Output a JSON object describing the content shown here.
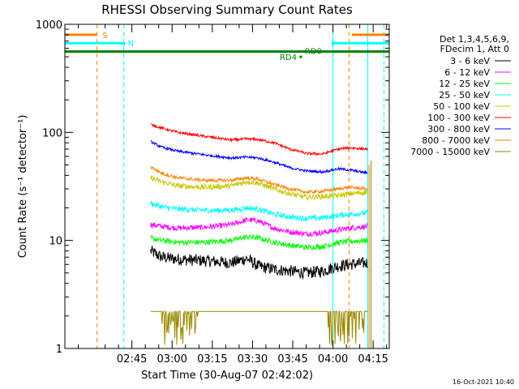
{
  "chart_data": {
    "type": "line",
    "title": "RHESSI Observing Summary Count Rates",
    "xlabel": "Start Time (30-Aug-07 02:42:02)",
    "ylabel": "Count Rate (s⁻¹ detector⁻¹)",
    "y_scale": "log",
    "ylim": [
      1,
      1000
    ],
    "y_ticks": [
      1,
      10,
      100,
      1000
    ],
    "y_tick_labels": [
      "1",
      "10",
      "100",
      "1000"
    ],
    "xlim_minutes": [
      -22,
      99
    ],
    "x_ticks_minutes": [
      3,
      18,
      33,
      48,
      63,
      78,
      93
    ],
    "x_tick_labels": [
      "02:45",
      "03:00",
      "03:15",
      "03:30",
      "03:45",
      "04:00",
      "04:15"
    ],
    "footer_date": "16-Oct-2021 10:40",
    "legend_header": [
      "Det 1,3,4,5,6,9,",
      "FDecim 1, Att 0"
    ],
    "series": [
      {
        "name": "3 - 6 keV",
        "color": "#000000",
        "x": [
          10,
          14,
          20,
          30,
          40,
          46,
          50,
          56,
          62,
          68,
          74,
          80,
          84,
          91
        ],
        "y": [
          8.0,
          7.0,
          6.7,
          6.5,
          6.2,
          6.8,
          5.8,
          5.4,
          5.2,
          5.0,
          5.2,
          5.8,
          6.0,
          6.2
        ]
      },
      {
        "name": "6 - 12 keV",
        "color": "#ff00ff",
        "x": [
          10,
          14,
          20,
          30,
          40,
          46,
          50,
          56,
          62,
          68,
          74,
          80,
          84,
          91
        ],
        "y": [
          14.0,
          13.5,
          13.0,
          13.2,
          14.0,
          15.5,
          15.2,
          13.0,
          12.0,
          11.5,
          11.8,
          12.5,
          13.0,
          13.5
        ]
      },
      {
        "name": "12 - 25 keV",
        "color": "#00ff00",
        "x": [
          10,
          14,
          20,
          30,
          40,
          46,
          50,
          56,
          62,
          68,
          74,
          80,
          84,
          91
        ],
        "y": [
          10.5,
          10.0,
          9.6,
          9.6,
          10.0,
          10.8,
          10.6,
          9.6,
          9.0,
          8.6,
          8.8,
          9.5,
          9.8,
          10.0
        ]
      },
      {
        "name": "25 - 50 keV",
        "color": "#00ffff",
        "x": [
          10,
          14,
          20,
          30,
          40,
          46,
          50,
          56,
          62,
          68,
          74,
          80,
          84,
          91
        ],
        "y": [
          22.0,
          20.5,
          19.5,
          19.0,
          19.0,
          20.0,
          19.5,
          17.5,
          16.5,
          16.0,
          16.2,
          17.0,
          17.5,
          18.0
        ]
      },
      {
        "name": "50 - 100 keV",
        "color": "#c8c800",
        "x": [
          10,
          14,
          20,
          30,
          40,
          46,
          50,
          56,
          62,
          68,
          74,
          80,
          84,
          91
        ],
        "y": [
          38.0,
          35.0,
          32.0,
          31.0,
          32.0,
          35.0,
          34.0,
          30.0,
          27.0,
          25.0,
          25.5,
          26.0,
          27.0,
          28.0
        ]
      },
      {
        "name": "100 - 300 keV",
        "color": "#ff0000",
        "x": [
          10,
          14,
          20,
          30,
          40,
          46,
          50,
          56,
          62,
          68,
          74,
          80,
          84,
          91
        ],
        "y": [
          118.0,
          110.0,
          100.0,
          92.0,
          85.0,
          87.0,
          86.0,
          80.0,
          70.0,
          64.0,
          63.0,
          70.0,
          72.0,
          70.0
        ]
      },
      {
        "name": "300 - 800 keV",
        "color": "#0000ff",
        "x": [
          10,
          14,
          20,
          30,
          40,
          46,
          50,
          56,
          62,
          68,
          74,
          80,
          84,
          91
        ],
        "y": [
          82.0,
          73.0,
          67.0,
          62.0,
          58.0,
          59.0,
          58.0,
          53.0,
          47.0,
          44.0,
          43.0,
          46.0,
          45.0,
          42.0
        ]
      },
      {
        "name": "800 - 7000 keV",
        "color": "#ff8000",
        "x": [
          10,
          14,
          20,
          30,
          40,
          46,
          50,
          56,
          62,
          68,
          74,
          80,
          84,
          91
        ],
        "y": [
          48.0,
          42.0,
          38.0,
          36.0,
          36.0,
          38.0,
          37.0,
          33.0,
          30.0,
          28.0,
          28.5,
          30.0,
          31.0,
          30.0
        ]
      },
      {
        "name": "7000 - 15000 keV",
        "color": "#998800",
        "x": [
          10,
          14,
          20,
          30,
          40,
          46,
          50,
          56,
          62,
          68,
          74,
          80,
          84,
          91
        ],
        "y": [
          2.2,
          2.2,
          2.2,
          2.2,
          2.2,
          2.2,
          2.2,
          2.2,
          2.2,
          2.2,
          2.2,
          2.2,
          2.2,
          2.2
        ]
      }
    ],
    "annotations": [
      {
        "label": "S",
        "color": "#ff8000"
      },
      {
        "label": "N",
        "color": "#00ffff"
      },
      {
        "label": "RD0",
        "color": "#008000"
      },
      {
        "label": "RD4",
        "color": "#008000"
      }
    ]
  }
}
